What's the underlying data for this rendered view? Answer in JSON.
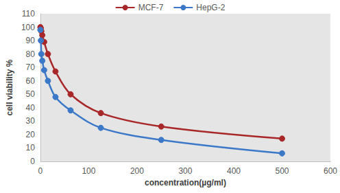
{
  "chart_data": {
    "type": "line",
    "x_label": "concentration(µg/ml)",
    "y_label": "cell viability %",
    "x": [
      0,
      0.98,
      1.95,
      3.9,
      7.8,
      15.6,
      31.25,
      62.5,
      125,
      250,
      500
    ],
    "series": [
      {
        "name": "MCF-7",
        "color": "#a8282a",
        "marker": "circle",
        "line_style": "solid",
        "values": [
          100,
          99,
          97,
          94,
          89,
          80,
          67,
          50,
          36,
          26,
          17
        ]
      },
      {
        "name": "HepG-2",
        "color": "#3b78c7",
        "marker": "circle",
        "line_style": "solid",
        "values": [
          98,
          90,
          80,
          75,
          68,
          60,
          48,
          38,
          25,
          16,
          6
        ]
      }
    ],
    "xlim": [
      0,
      600
    ],
    "xticks": [
      0,
      100,
      200,
      300,
      400,
      500,
      600
    ],
    "ylim": [
      0,
      110
    ],
    "yticks": [
      0,
      10,
      20,
      30,
      40,
      50,
      60,
      70,
      80,
      90,
      100,
      110
    ],
    "grid": false,
    "legend": "top"
  }
}
